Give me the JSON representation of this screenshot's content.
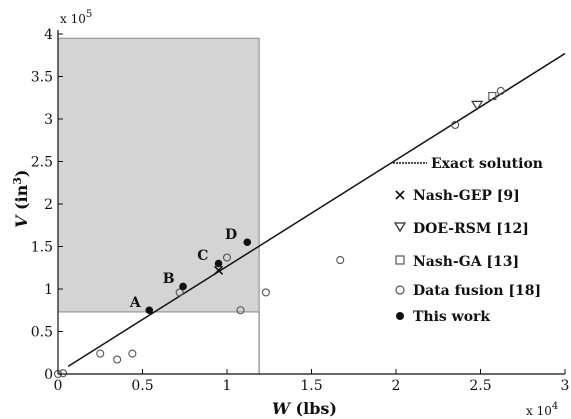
{
  "chart_data": {
    "type": "scatter",
    "title": "",
    "xlabel": {
      "var": "W",
      "unit": " (lbs)"
    },
    "ylabel": {
      "var": "V",
      "unit": " (in",
      "sup": "3",
      "close": ")"
    },
    "x_multiplier": "x 10",
    "x_multiplier_exp": "4",
    "y_multiplier": "x 10",
    "y_multiplier_exp": "5",
    "xlim": [
      0,
      30000
    ],
    "ylim": [
      0,
      400000
    ],
    "x_ticks": [
      {
        "value": 0,
        "label": "0"
      },
      {
        "value": 5000,
        "label": "0.5"
      },
      {
        "value": 10000,
        "label": "1"
      },
      {
        "value": 15000,
        "label": "1.5"
      },
      {
        "value": 20000,
        "label": "2"
      },
      {
        "value": 25000,
        "label": "2.5"
      },
      {
        "value": 30000,
        "label": "3"
      }
    ],
    "y_ticks": [
      {
        "value": 0,
        "label": "0"
      },
      {
        "value": 50000,
        "label": "0.5"
      },
      {
        "value": 100000,
        "label": "1"
      },
      {
        "value": 150000,
        "label": "1.5"
      },
      {
        "value": 200000,
        "label": "2"
      },
      {
        "value": 250000,
        "label": "2.5"
      },
      {
        "value": 300000,
        "label": "3"
      },
      {
        "value": 350000,
        "label": "3.5"
      },
      {
        "value": 400000,
        "label": "4"
      }
    ],
    "shaded_region": {
      "x": [
        0,
        11900
      ],
      "y": [
        73000,
        395000
      ],
      "color": "#d4d4d4"
    },
    "legend_position": "center-right",
    "series": [
      {
        "name": "Exact solution",
        "kind": "line",
        "color": "#111111",
        "points": [
          [
            600,
            9000
          ],
          [
            30000,
            377000
          ]
        ]
      },
      {
        "name": "Nash-GEP [9]",
        "kind": "x-marker",
        "points": [
          [
            9500,
            122000
          ]
        ]
      },
      {
        "name": "DOE-RSM [12]",
        "kind": "triangle-down",
        "points": [
          [
            24800,
            316000
          ]
        ]
      },
      {
        "name": "Nash-GA [13]",
        "kind": "square",
        "points": [
          [
            25700,
            327000
          ]
        ]
      },
      {
        "name": "Data fusion [18]",
        "kind": "circle-open",
        "points": [
          [
            0,
            0
          ],
          [
            300,
            1000
          ],
          [
            2500,
            24000
          ],
          [
            3500,
            17000
          ],
          [
            4400,
            24000
          ],
          [
            7200,
            96000
          ],
          [
            10000,
            137000
          ],
          [
            10800,
            75000
          ],
          [
            12300,
            96000
          ],
          [
            16700,
            134000
          ],
          [
            23500,
            293000
          ],
          [
            26200,
            333000
          ]
        ]
      },
      {
        "name": "This work",
        "kind": "circle-filled",
        "points": [
          [
            5400,
            75000
          ],
          [
            7400,
            103000
          ],
          [
            9500,
            130000
          ],
          [
            11200,
            155000
          ]
        ]
      }
    ],
    "point_labels": [
      {
        "text": "A",
        "x": 4900,
        "y": 79000
      },
      {
        "text": "B",
        "x": 6900,
        "y": 107000
      },
      {
        "text": "C",
        "x": 8900,
        "y": 134000
      },
      {
        "text": "D",
        "x": 10600,
        "y": 159000
      }
    ]
  }
}
